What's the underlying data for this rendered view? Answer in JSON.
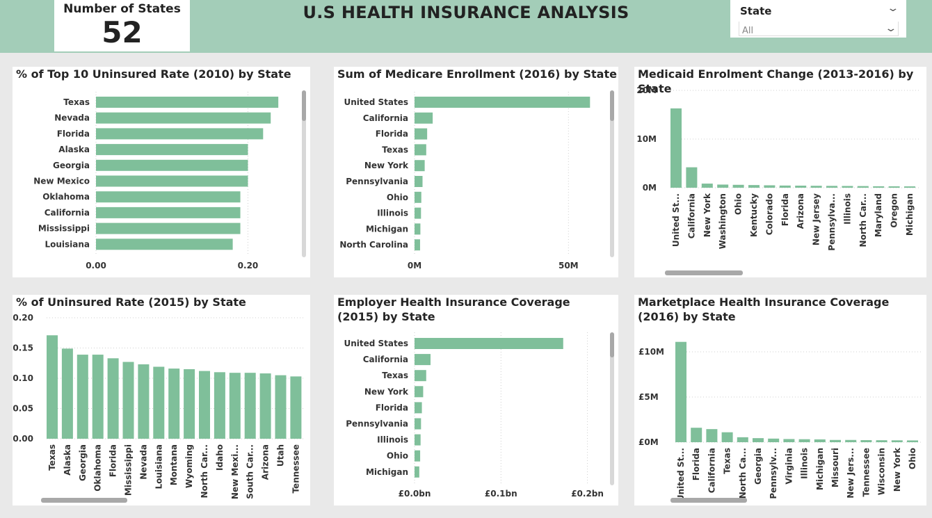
{
  "header": {
    "card_label": "Number of States",
    "card_value": "52",
    "title": "U.S HEALTH INSURANCE ANALYSIS",
    "slicer_label": "State",
    "slicer_value": "All"
  },
  "colors": {
    "bar": "#7fbf9a",
    "header_bg": "#a3cdb8",
    "background": "#e9e9e9"
  },
  "chart_data": [
    {
      "type": "bar",
      "orientation": "horizontal",
      "title": "% of Top 10 Uninsured Rate (2010) by State",
      "categories": [
        "Texas",
        "Nevada",
        "Florida",
        "Alaska",
        "Georgia",
        "New Mexico",
        "Oklahoma",
        "California",
        "Mississippi",
        "Louisiana"
      ],
      "values": [
        0.24,
        0.23,
        0.22,
        0.2,
        0.2,
        0.2,
        0.19,
        0.19,
        0.19,
        0.18
      ],
      "xlim": [
        0,
        0.26
      ],
      "tick_values": [
        0,
        0.2
      ],
      "tick_labels": [
        "0.00",
        "0.20"
      ]
    },
    {
      "type": "bar",
      "orientation": "horizontal",
      "title": "Sum of Medicare Enrollment (2016) by State",
      "categories": [
        "United States",
        "California",
        "Florida",
        "Texas",
        "New York",
        "Pennsylvania",
        "Ohio",
        "Illinois",
        "Michigan",
        "North Carolina"
      ],
      "values": [
        57000000,
        5900000,
        4100000,
        3800000,
        3300000,
        2600000,
        2200000,
        2100000,
        1900000,
        1800000
      ],
      "xlim": [
        0,
        61000000
      ],
      "tick_values": [
        0,
        50000000
      ],
      "tick_labels": [
        "0M",
        "50M"
      ]
    },
    {
      "type": "bar",
      "orientation": "vertical",
      "title": "Medicaid Enrolment Change (2013-2016) by State",
      "categories": [
        "United St...",
        "California",
        "New York",
        "Washington",
        "Ohio",
        "Kentucky",
        "Colorado",
        "Florida",
        "Arizona",
        "New Jersey",
        "Pennsylva...",
        "Illinois",
        "North Car...",
        "Maryland",
        "Oregon",
        "Michigan"
      ],
      "values": [
        16300000,
        4200000,
        850000,
        650000,
        600000,
        550000,
        500000,
        450000,
        430000,
        400000,
        380000,
        360000,
        340000,
        300000,
        290000,
        280000
      ],
      "ylim": [
        0,
        20000000
      ],
      "tick_values": [
        0,
        10000000,
        20000000
      ],
      "tick_labels": [
        "0M",
        "10M",
        "20M"
      ]
    },
    {
      "type": "bar",
      "orientation": "vertical",
      "title": "% of Uninsured Rate (2015) by State",
      "categories": [
        "Texas",
        "Alaska",
        "Georgia",
        "Oklahoma",
        "Florida",
        "Mississippi",
        "Nevada",
        "Louisiana",
        "Montana",
        "Wyoming",
        "North Car...",
        "Idaho",
        "New Mexi...",
        "South Car...",
        "Arizona",
        "Utah",
        "Tennessee"
      ],
      "values": [
        0.171,
        0.149,
        0.139,
        0.139,
        0.133,
        0.127,
        0.123,
        0.119,
        0.116,
        0.115,
        0.112,
        0.11,
        0.109,
        0.109,
        0.108,
        0.105,
        0.103
      ],
      "ylim": [
        0,
        0.2
      ],
      "tick_values": [
        0,
        0.05,
        0.1,
        0.15,
        0.2
      ],
      "tick_labels": [
        "0.00",
        "0.05",
        "0.10",
        "0.15",
        "0.20"
      ]
    },
    {
      "type": "bar",
      "orientation": "horizontal",
      "title": "Employer Health Insurance Coverage (2015) by State",
      "categories": [
        "United States",
        "California",
        "Texas",
        "New York",
        "Florida",
        "Pennsylvania",
        "Illinois",
        "Ohio",
        "Michigan"
      ],
      "values": [
        172000000,
        18500000,
        13500000,
        10000000,
        8500000,
        7500000,
        7000000,
        6500000,
        5500000
      ],
      "xlim": [
        0,
        210000000
      ],
      "tick_values": [
        0,
        100000000,
        200000000
      ],
      "tick_labels": [
        "£0.0bn",
        "£0.1bn",
        "£0.2bn"
      ]
    },
    {
      "type": "bar",
      "orientation": "vertical",
      "title": "Marketplace Health Insurance Coverage (2016) by State",
      "categories": [
        "United St...",
        "Florida",
        "California",
        "Texas",
        "North Ca...",
        "Georgia",
        "Pennsylv...",
        "Virginia",
        "Illinois",
        "Michigan",
        "Missouri",
        "New Jers...",
        "Tennessee",
        "Wisconsin",
        "New York",
        "Ohio"
      ],
      "values": [
        11100000,
        1600000,
        1450000,
        1100000,
        550000,
        450000,
        400000,
        350000,
        330000,
        310000,
        250000,
        250000,
        230000,
        220000,
        210000,
        200000
      ],
      "ylim": [
        0,
        12000000
      ],
      "tick_values": [
        0,
        5000000,
        10000000
      ],
      "tick_labels": [
        "£0M",
        "£5M",
        "£10M"
      ]
    }
  ]
}
